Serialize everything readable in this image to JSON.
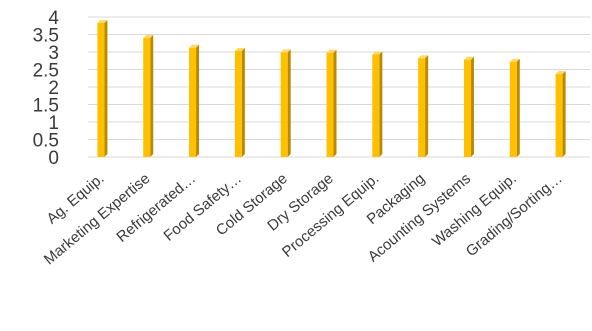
{
  "chart_data": {
    "type": "bar",
    "title": "",
    "xlabel": "",
    "ylabel": "",
    "categories": [
      "Ag. Equip.",
      "Marketing Expertise",
      "Refrigerated…",
      "Food Safety…",
      "Cold Storage",
      "Dry Storage",
      "Processing Equip.",
      "Packaging",
      "Acounting Systems",
      "Washing Equip.",
      "Grading/Sorting…"
    ],
    "values": [
      3.83,
      3.4,
      3.12,
      3.03,
      2.99,
      2.98,
      2.93,
      2.82,
      2.78,
      2.72,
      2.37
    ],
    "ylim": [
      0,
      4
    ],
    "yticks": [
      "0",
      "0.5",
      "1",
      "1.5",
      "2",
      "2.5",
      "3",
      "3.5",
      "4"
    ],
    "grid": true,
    "legend": "none",
    "colors": {
      "bar_face": "#ffc000",
      "bar_side": "#b88a00",
      "bar_top": "#ffd966",
      "grid": "#d9d9d9",
      "text": "#3a3a3a"
    }
  }
}
